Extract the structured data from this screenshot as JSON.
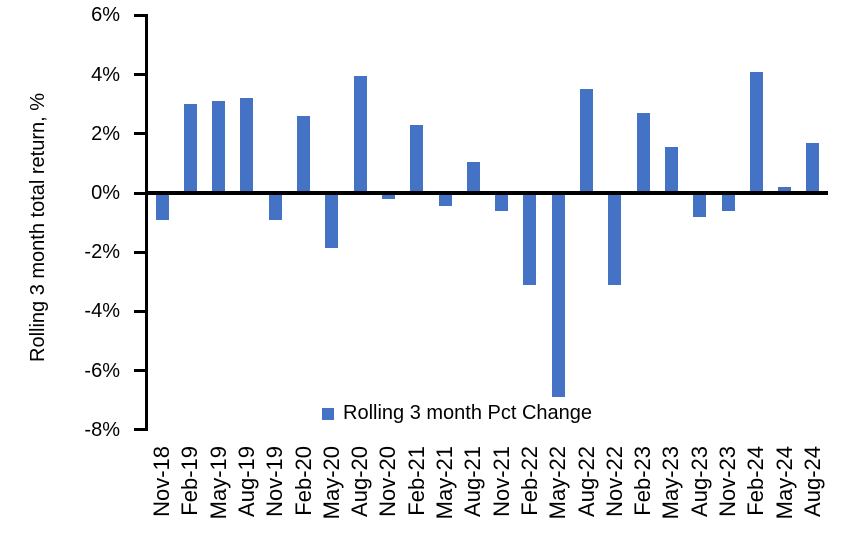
{
  "chart_data": {
    "type": "bar",
    "title": "",
    "xlabel": "",
    "ylabel": "Rolling 3 month total return, %",
    "categories": [
      "Nov-18",
      "Feb-19",
      "May-19",
      "Aug-19",
      "Nov-19",
      "Feb-20",
      "May-20",
      "Aug-20",
      "Nov-20",
      "Feb-21",
      "May-21",
      "Aug-21",
      "Nov-21",
      "Feb-22",
      "May-22",
      "Aug-22",
      "Nov-22",
      "Feb-23",
      "May-23",
      "Aug-23",
      "Nov-23",
      "Feb-24",
      "May-24",
      "Aug-24"
    ],
    "values": [
      -0.9,
      3.0,
      3.1,
      3.2,
      -0.9,
      2.6,
      -1.85,
      3.95,
      -0.2,
      2.3,
      -0.45,
      1.05,
      -0.6,
      -3.1,
      -6.9,
      3.5,
      -3.1,
      2.7,
      1.55,
      -0.8,
      -0.6,
      4.1,
      0.2,
      1.7
    ],
    "series_name": "Rolling 3 month Pct Change",
    "ylim": [
      -8,
      6
    ],
    "ytick_values": [
      6,
      4,
      2,
      0,
      -2,
      -4,
      -6,
      -8
    ],
    "ytick_labels": [
      "6%",
      "4%",
      "2%",
      "0%",
      "-2%",
      "-4%",
      "-6%",
      "-8%"
    ],
    "grid": false,
    "legend_position": "bottom-center",
    "bar_color": "#4472C4",
    "axis_color": "#000000",
    "background_color": "#FFFFFF"
  },
  "legend": {
    "label": "Rolling 3 month Pct Change",
    "marker_color": "#4472C4"
  }
}
